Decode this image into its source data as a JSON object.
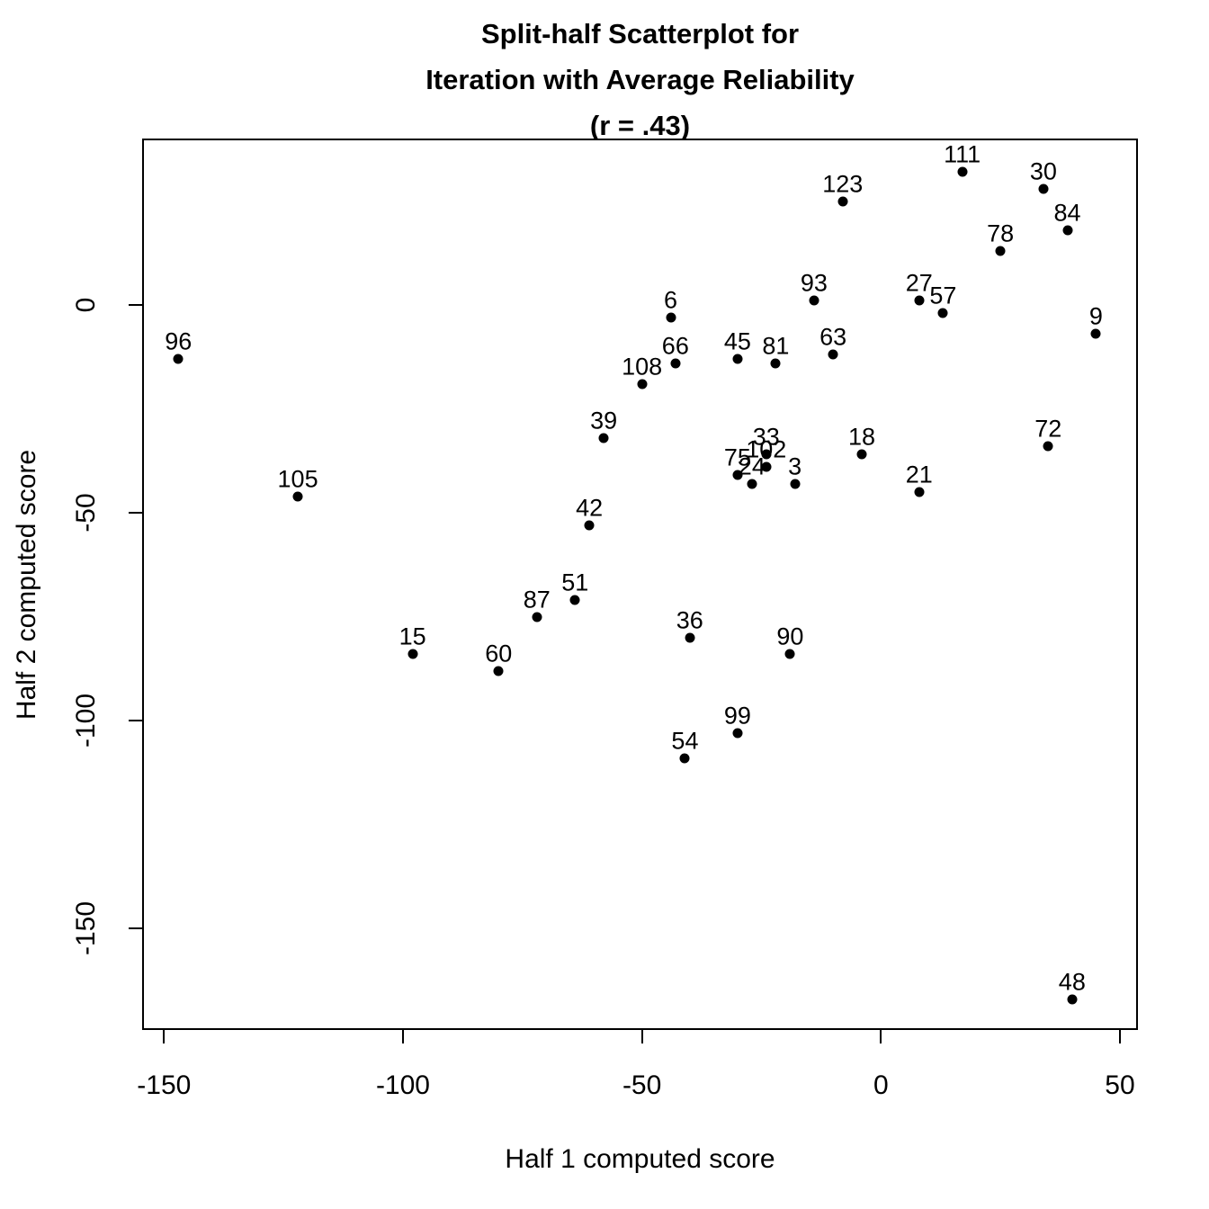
{
  "title": {
    "line1": "Split-half Scatterplot for",
    "line2": "Iteration with Average Reliability",
    "line3": "(r = .43)"
  },
  "axes": {
    "xlabel": "Half 1 computed score",
    "ylabel": "Half 2 computed score"
  },
  "colors": {
    "background": "#ffffff",
    "foreground": "#000000",
    "point": "#000000"
  },
  "chart_data": {
    "type": "scatter",
    "title": "Split-half Scatterplot for Iteration with Average Reliability (r = .43)",
    "xlabel": "Half 1 computed score",
    "ylabel": "Half 2 computed score",
    "xlim": [
      -155,
      54
    ],
    "ylim": [
      -174,
      40
    ],
    "x_ticks": [
      -150,
      -100,
      -50,
      0,
      50
    ],
    "y_ticks": [
      0,
      -50,
      -100,
      -150
    ],
    "grid": false,
    "legend": null,
    "point_style": "filled-circle",
    "label_position": "above",
    "points": [
      {
        "label": "96",
        "x": -147,
        "y": -13
      },
      {
        "label": "105",
        "x": -122,
        "y": -46
      },
      {
        "label": "15",
        "x": -98,
        "y": -84
      },
      {
        "label": "60",
        "x": -80,
        "y": -88
      },
      {
        "label": "87",
        "x": -72,
        "y": -75
      },
      {
        "label": "51",
        "x": -64,
        "y": -71
      },
      {
        "label": "42",
        "x": -61,
        "y": -53
      },
      {
        "label": "39",
        "x": -58,
        "y": -32
      },
      {
        "label": "108",
        "x": -50,
        "y": -19
      },
      {
        "label": "6",
        "x": -44,
        "y": -3
      },
      {
        "label": "66",
        "x": -43,
        "y": -14
      },
      {
        "label": "54",
        "x": -41,
        "y": -109
      },
      {
        "label": "36",
        "x": -40,
        "y": -80
      },
      {
        "label": "45",
        "x": -30,
        "y": -13
      },
      {
        "label": "75",
        "x": -30,
        "y": -41
      },
      {
        "label": "99",
        "x": -30,
        "y": -103
      },
      {
        "label": "24",
        "x": -27,
        "y": -43
      },
      {
        "label": "33",
        "x": -24,
        "y": -36
      },
      {
        "label": "102",
        "x": -24,
        "y": -39
      },
      {
        "label": "81",
        "x": -22,
        "y": -14
      },
      {
        "label": "90",
        "x": -19,
        "y": -84
      },
      {
        "label": "3",
        "x": -18,
        "y": -43
      },
      {
        "label": "93",
        "x": -14,
        "y": 1
      },
      {
        "label": "63",
        "x": -10,
        "y": -12
      },
      {
        "label": "123",
        "x": -8,
        "y": 25
      },
      {
        "label": "18",
        "x": -4,
        "y": -36
      },
      {
        "label": "27",
        "x": 8,
        "y": 1
      },
      {
        "label": "21",
        "x": 8,
        "y": -45
      },
      {
        "label": "57",
        "x": 13,
        "y": -2
      },
      {
        "label": "111",
        "x": 17,
        "y": 32
      },
      {
        "label": "78",
        "x": 25,
        "y": 13
      },
      {
        "label": "30",
        "x": 34,
        "y": 28
      },
      {
        "label": "72",
        "x": 35,
        "y": -34
      },
      {
        "label": "84",
        "x": 39,
        "y": 18
      },
      {
        "label": "48",
        "x": 40,
        "y": -167
      },
      {
        "label": "9",
        "x": 45,
        "y": -7
      }
    ]
  }
}
